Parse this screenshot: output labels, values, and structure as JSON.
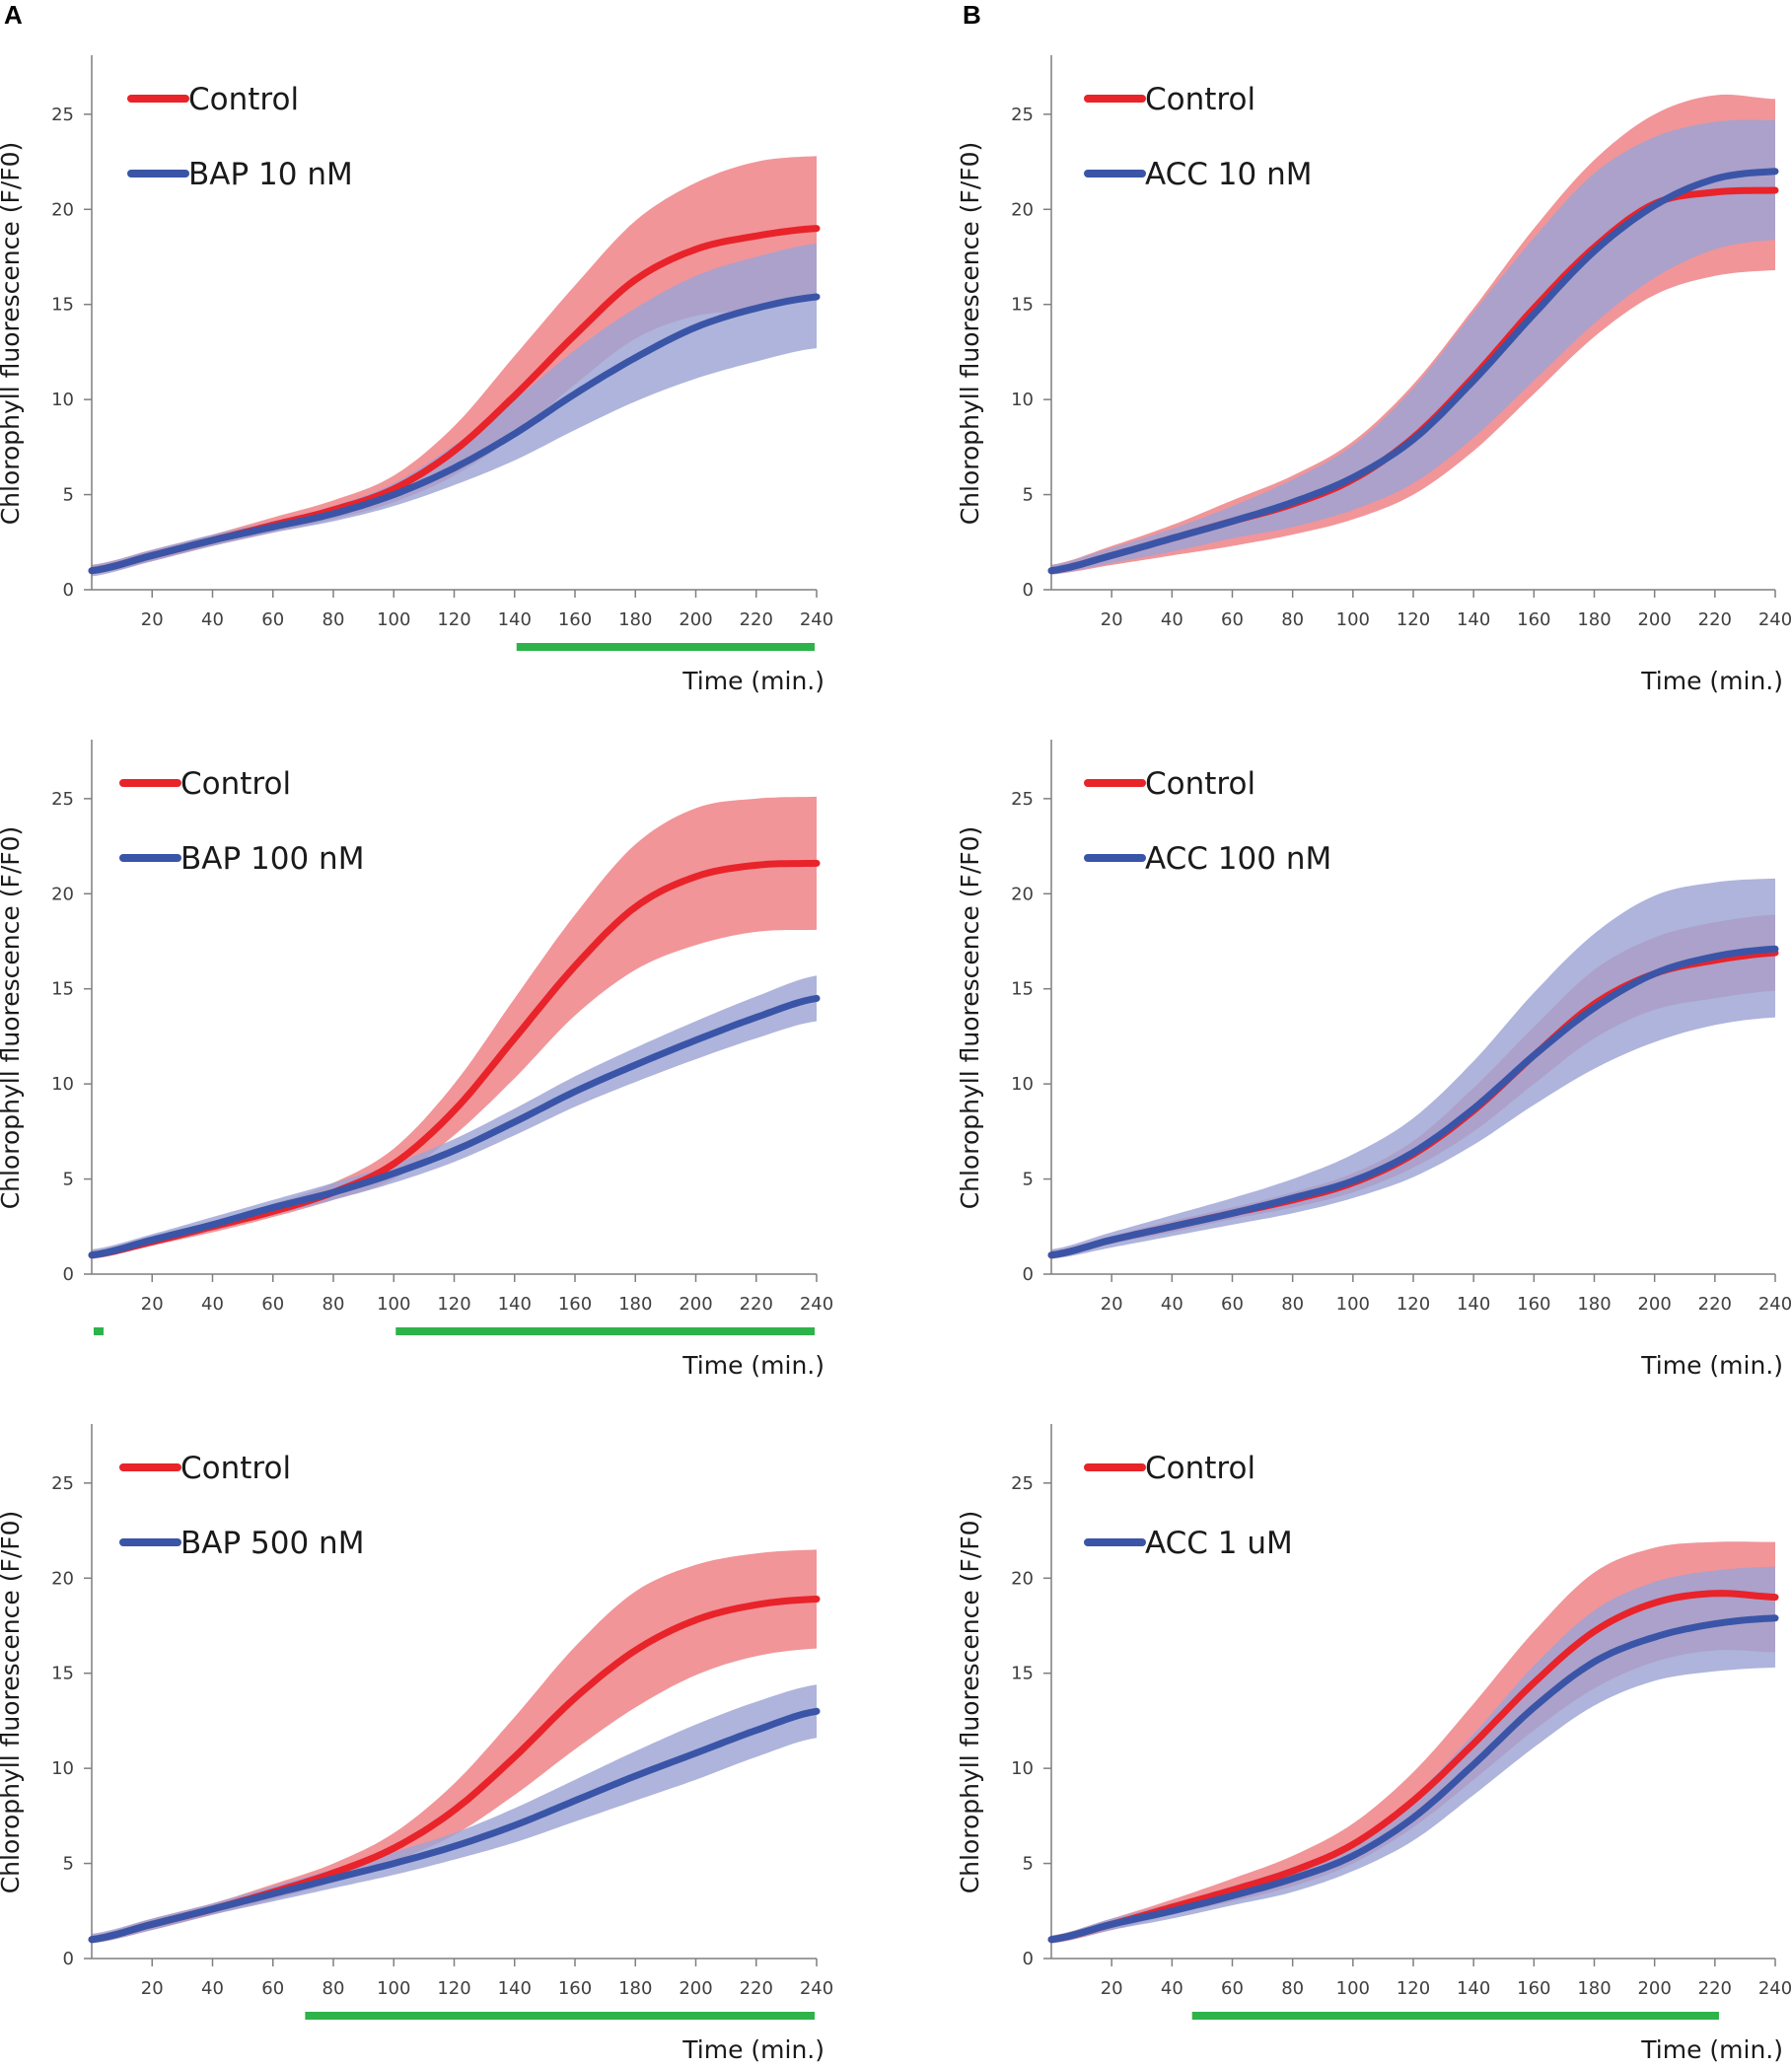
{
  "figure": {
    "panel_letters": [
      "A",
      "B"
    ]
  },
  "colors": {
    "control": "#e8232a",
    "control_band": "#f08a8e",
    "treatment": "#3a55a7",
    "treatment_band": "#9ca4d4",
    "significance": "#2eb34a",
    "axis": "#7f7f7f"
  },
  "chart_data": [
    {
      "type": "line",
      "panel": "A",
      "row": 0,
      "xlabel": "Time (min.)",
      "ylabel": "Chlorophyll fluorescence (F/F0)",
      "xlim": [
        0,
        240
      ],
      "ylim": [
        0,
        28
      ],
      "xticks": [
        20,
        40,
        60,
        80,
        100,
        120,
        140,
        160,
        180,
        200,
        220,
        240
      ],
      "yticks": [
        0,
        5,
        10,
        15,
        20,
        25
      ],
      "x": [
        0,
        20,
        40,
        60,
        80,
        100,
        120,
        140,
        160,
        180,
        200,
        220,
        240
      ],
      "series": [
        {
          "name": "Control",
          "color": "control",
          "values": [
            1.0,
            1.8,
            2.6,
            3.4,
            4.2,
            5.3,
            7.3,
            10.2,
            13.4,
            16.3,
            17.9,
            18.6,
            19.0
          ],
          "upper": [
            1.3,
            2.1,
            2.9,
            3.8,
            4.7,
            6.0,
            8.6,
            12.3,
            16.0,
            19.4,
            21.4,
            22.5,
            22.8
          ],
          "lower": [
            0.8,
            1.5,
            2.3,
            3.0,
            3.7,
            4.6,
            6.0,
            8.1,
            10.8,
            13.2,
            14.4,
            14.7,
            15.2
          ]
        },
        {
          "name": "BAP 10 nM",
          "color": "treatment",
          "values": [
            1.0,
            1.8,
            2.6,
            3.3,
            4.0,
            5.0,
            6.4,
            8.2,
            10.3,
            12.2,
            13.8,
            14.8,
            15.4
          ],
          "upper": [
            1.3,
            2.1,
            2.9,
            3.6,
            4.4,
            5.6,
            7.6,
            10.0,
            12.6,
            14.8,
            16.5,
            17.5,
            18.2
          ],
          "lower": [
            0.7,
            1.5,
            2.3,
            3.0,
            3.6,
            4.4,
            5.5,
            6.8,
            8.4,
            9.9,
            11.1,
            12.0,
            12.7
          ]
        }
      ],
      "significance": [
        [
          140,
          240
        ]
      ]
    },
    {
      "type": "line",
      "panel": "A",
      "row": 1,
      "xlabel": "Time (min.)",
      "ylabel": "Chlorophyll fluorescence (F/F0)",
      "xlim": [
        0,
        240
      ],
      "ylim": [
        0,
        28
      ],
      "xticks": [
        20,
        40,
        60,
        80,
        100,
        120,
        140,
        160,
        180,
        200,
        220,
        240
      ],
      "yticks": [
        0,
        5,
        10,
        15,
        20,
        25
      ],
      "x": [
        0,
        20,
        40,
        60,
        80,
        100,
        120,
        140,
        160,
        180,
        200,
        220,
        240
      ],
      "series": [
        {
          "name": "Control",
          "color": "control",
          "values": [
            1.0,
            1.7,
            2.5,
            3.3,
            4.3,
            5.8,
            8.6,
            12.4,
            16.2,
            19.3,
            20.9,
            21.5,
            21.6
          ],
          "upper": [
            1.2,
            2.0,
            2.8,
            3.7,
            4.8,
            6.6,
            10.0,
            14.5,
            18.9,
            22.6,
            24.5,
            25.0,
            25.1
          ],
          "lower": [
            0.8,
            1.5,
            2.2,
            3.0,
            3.9,
            5.0,
            7.3,
            10.3,
            13.6,
            16.0,
            17.3,
            18.0,
            18.1
          ]
        },
        {
          "name": "BAP 100 nM",
          "color": "treatment",
          "values": [
            1.0,
            1.8,
            2.6,
            3.5,
            4.3,
            5.3,
            6.5,
            8.0,
            9.6,
            11.0,
            12.3,
            13.5,
            14.5
          ],
          "upper": [
            1.3,
            2.1,
            3.0,
            3.9,
            4.8,
            5.8,
            7.1,
            8.7,
            10.4,
            11.9,
            13.3,
            14.6,
            15.7
          ],
          "lower": [
            0.8,
            1.5,
            2.3,
            3.1,
            3.9,
            4.8,
            5.9,
            7.3,
            8.8,
            10.1,
            11.3,
            12.4,
            13.3
          ]
        }
      ],
      "significance": [
        [
          0,
          4
        ],
        [
          100,
          240
        ]
      ]
    },
    {
      "type": "line",
      "panel": "A",
      "row": 2,
      "xlabel": "Time (min.)",
      "ylabel": "Chlorophyll fluorescence (F/F0)",
      "xlim": [
        0,
        240
      ],
      "ylim": [
        0,
        28
      ],
      "xticks": [
        20,
        40,
        60,
        80,
        100,
        120,
        140,
        160,
        180,
        200,
        220,
        240
      ],
      "yticks": [
        0,
        5,
        10,
        15,
        20,
        25
      ],
      "x": [
        0,
        20,
        40,
        60,
        80,
        100,
        120,
        140,
        160,
        180,
        200,
        220,
        240
      ],
      "series": [
        {
          "name": "Control",
          "color": "control",
          "values": [
            1.0,
            1.8,
            2.6,
            3.5,
            4.5,
            5.8,
            7.8,
            10.6,
            13.7,
            16.2,
            17.8,
            18.6,
            18.9
          ],
          "upper": [
            1.2,
            2.1,
            2.9,
            3.9,
            5.0,
            6.6,
            9.2,
            12.7,
            16.4,
            19.3,
            20.7,
            21.3,
            21.5
          ],
          "lower": [
            0.8,
            1.5,
            2.3,
            3.1,
            4.0,
            5.1,
            6.5,
            8.6,
            11.0,
            13.2,
            14.9,
            15.9,
            16.3
          ]
        },
        {
          "name": "BAP 500 nM",
          "color": "treatment",
          "values": [
            1.0,
            1.8,
            2.6,
            3.4,
            4.2,
            5.0,
            5.9,
            7.0,
            8.3,
            9.6,
            10.8,
            12.0,
            13.0
          ],
          "upper": [
            1.3,
            2.1,
            2.9,
            3.8,
            4.7,
            5.6,
            6.6,
            7.9,
            9.4,
            10.9,
            12.3,
            13.5,
            14.4
          ],
          "lower": [
            0.8,
            1.5,
            2.3,
            3.0,
            3.7,
            4.4,
            5.2,
            6.1,
            7.2,
            8.3,
            9.4,
            10.6,
            11.6
          ]
        }
      ],
      "significance": [
        [
          70,
          240
        ]
      ]
    },
    {
      "type": "line",
      "panel": "B",
      "row": 0,
      "xlabel": "Time (min.)",
      "ylabel": "Chlorophyll fluorescence (F/F0)",
      "xlim": [
        0,
        240
      ],
      "ylim": [
        0,
        28
      ],
      "xticks": [
        20,
        40,
        60,
        80,
        100,
        120,
        140,
        160,
        180,
        200,
        220,
        240
      ],
      "yticks": [
        0,
        5,
        10,
        15,
        20,
        25
      ],
      "x": [
        0,
        20,
        40,
        60,
        80,
        100,
        120,
        140,
        160,
        180,
        200,
        220,
        240
      ],
      "series": [
        {
          "name": "Control",
          "color": "control",
          "values": [
            1.0,
            1.8,
            2.7,
            3.6,
            4.5,
            5.8,
            8.0,
            11.2,
            14.8,
            18.0,
            20.3,
            20.9,
            21.0
          ],
          "upper": [
            1.3,
            2.3,
            3.4,
            4.7,
            6.0,
            7.8,
            10.8,
            14.8,
            19.0,
            22.6,
            25.0,
            26.0,
            25.8
          ],
          "lower": [
            0.8,
            1.3,
            1.8,
            2.3,
            2.9,
            3.7,
            5.0,
            7.3,
            10.3,
            13.3,
            15.5,
            16.5,
            16.8
          ]
        },
        {
          "name": "ACC 10 nM",
          "color": "treatment",
          "values": [
            1.0,
            1.8,
            2.7,
            3.6,
            4.6,
            5.9,
            7.9,
            11.0,
            14.5,
            17.8,
            20.2,
            21.6,
            22.0
          ],
          "upper": [
            1.3,
            2.2,
            3.2,
            4.4,
            5.8,
            7.6,
            10.6,
            14.6,
            18.5,
            21.9,
            23.8,
            24.6,
            24.7
          ],
          "lower": [
            0.8,
            1.4,
            2.0,
            2.7,
            3.3,
            4.2,
            5.6,
            8.0,
            11.0,
            14.0,
            16.4,
            17.9,
            18.4
          ]
        }
      ],
      "significance": []
    },
    {
      "type": "line",
      "panel": "B",
      "row": 1,
      "xlabel": "Time (min.)",
      "ylabel": "Chlorophyll fluorescence (F/F0)",
      "xlim": [
        0,
        240
      ],
      "ylim": [
        0,
        28
      ],
      "xticks": [
        20,
        40,
        60,
        80,
        100,
        120,
        140,
        160,
        180,
        200,
        220,
        240
      ],
      "yticks": [
        0,
        5,
        10,
        15,
        20,
        25
      ],
      "x": [
        0,
        20,
        40,
        60,
        80,
        100,
        120,
        140,
        160,
        180,
        200,
        220,
        240
      ],
      "series": [
        {
          "name": "Control",
          "color": "control",
          "values": [
            1.0,
            1.8,
            2.5,
            3.2,
            3.9,
            4.8,
            6.3,
            8.6,
            11.5,
            14.2,
            15.8,
            16.5,
            16.9
          ],
          "upper": [
            1.2,
            2.0,
            2.8,
            3.5,
            4.3,
            5.3,
            7.0,
            9.8,
            13.0,
            16.0,
            17.7,
            18.5,
            18.9
          ],
          "lower": [
            0.8,
            1.6,
            2.2,
            2.9,
            3.5,
            4.3,
            5.6,
            7.5,
            10.0,
            12.4,
            13.9,
            14.5,
            14.9
          ]
        },
        {
          "name": "ACC 100 nM",
          "color": "treatment",
          "values": [
            1.0,
            1.8,
            2.5,
            3.2,
            4.0,
            4.9,
            6.4,
            8.7,
            11.5,
            14.0,
            15.8,
            16.7,
            17.1
          ],
          "upper": [
            1.3,
            2.2,
            3.1,
            4.0,
            5.0,
            6.3,
            8.2,
            11.2,
            14.8,
            17.9,
            19.9,
            20.6,
            20.8
          ],
          "lower": [
            0.8,
            1.4,
            2.0,
            2.6,
            3.2,
            4.0,
            5.1,
            6.8,
            8.9,
            10.8,
            12.2,
            13.1,
            13.5
          ]
        }
      ],
      "significance": []
    },
    {
      "type": "line",
      "panel": "B",
      "row": 2,
      "xlabel": "Time (min.)",
      "ylabel": "Chlorophyll fluorescence (F/F0)",
      "xlim": [
        0,
        240
      ],
      "ylim": [
        0,
        28
      ],
      "xticks": [
        20,
        40,
        60,
        80,
        100,
        120,
        140,
        160,
        180,
        200,
        220,
        240
      ],
      "yticks": [
        0,
        5,
        10,
        15,
        20,
        25
      ],
      "x": [
        0,
        20,
        40,
        60,
        80,
        100,
        120,
        140,
        160,
        180,
        200,
        220,
        240
      ],
      "series": [
        {
          "name": "Control",
          "color": "control",
          "values": [
            1.0,
            1.8,
            2.7,
            3.6,
            4.6,
            6.0,
            8.3,
            11.3,
            14.5,
            17.2,
            18.7,
            19.2,
            19.0
          ],
          "upper": [
            1.2,
            2.1,
            3.1,
            4.2,
            5.4,
            7.1,
            9.8,
            13.4,
            17.2,
            20.3,
            21.6,
            21.9,
            21.9
          ],
          "lower": [
            0.8,
            1.5,
            2.3,
            3.0,
            3.8,
            5.0,
            6.9,
            9.4,
            12.0,
            14.2,
            15.6,
            16.2,
            16.1
          ]
        },
        {
          "name": "ACC 1 uM",
          "color": "treatment",
          "values": [
            1.0,
            1.8,
            2.5,
            3.3,
            4.2,
            5.4,
            7.4,
            10.2,
            13.2,
            15.6,
            16.9,
            17.6,
            17.9
          ],
          "upper": [
            1.2,
            2.1,
            2.9,
            3.8,
            4.8,
            6.1,
            8.5,
            11.8,
            15.4,
            18.3,
            19.8,
            20.4,
            20.6
          ],
          "lower": [
            0.8,
            1.5,
            2.1,
            2.8,
            3.5,
            4.6,
            6.2,
            8.6,
            11.1,
            13.3,
            14.6,
            15.1,
            15.3
          ]
        }
      ],
      "significance": [
        [
          46,
          222
        ]
      ]
    }
  ]
}
